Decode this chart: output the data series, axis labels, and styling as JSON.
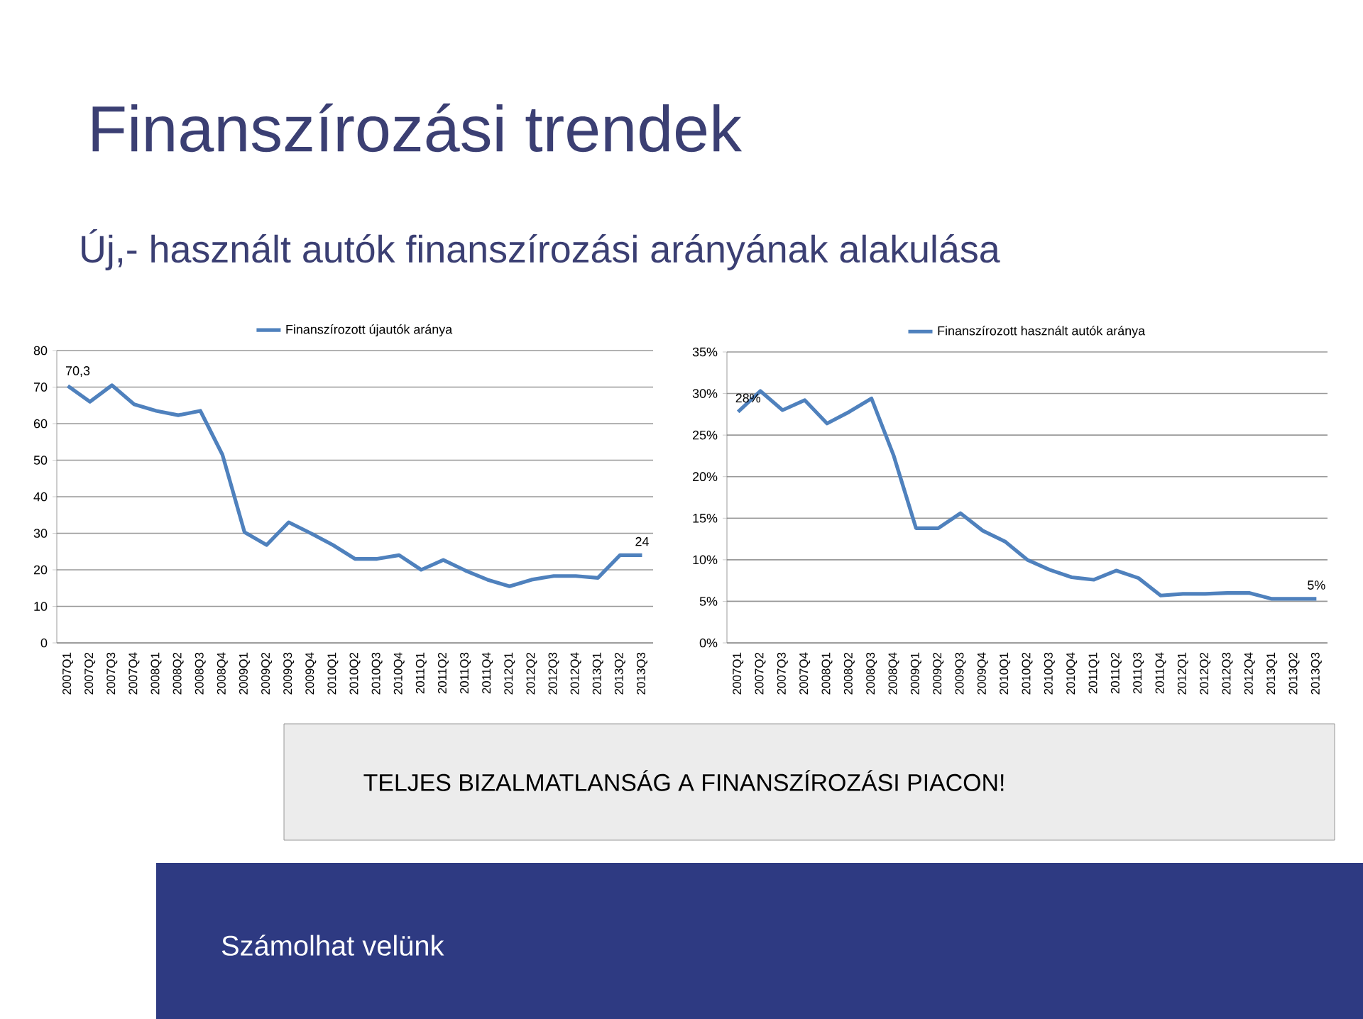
{
  "chart_data": [
    {
      "type": "line",
      "title": "Finanszírozási trendek",
      "subtitle": "Új,- használt autók finanszírozási arányának alakulása",
      "categories": [
        "2007Q1",
        "2007Q2",
        "2007Q3",
        "2007Q4",
        "2008Q1",
        "2008Q2",
        "2008Q3",
        "2008Q4",
        "2009Q1",
        "2009Q2",
        "2009Q3",
        "2009Q4",
        "2010Q1",
        "2010Q2",
        "2010Q3",
        "2010Q4",
        "2011Q1",
        "2011Q2",
        "2011Q3",
        "2011Q4",
        "2012Q1",
        "2012Q2",
        "2012Q3",
        "2012Q4",
        "2013Q1",
        "2013Q2",
        "2013Q3"
      ],
      "series": [
        {
          "name": "Finanszírozott újautók aránya",
          "color": "#4f81bd",
          "values": [
            70.3,
            66,
            70.5,
            65.3,
            63.5,
            62.3,
            63.5,
            51.5,
            30.3,
            26.8,
            33,
            30,
            26.8,
            23,
            23,
            24,
            20,
            22.7,
            19.8,
            17.3,
            15.5,
            17.3,
            18.3,
            18.3,
            17.8,
            24,
            24
          ],
          "value_labels": [
            "70,3",
            null,
            null,
            null,
            null,
            null,
            null,
            null,
            null,
            null,
            null,
            null,
            null,
            null,
            null,
            null,
            null,
            null,
            null,
            null,
            null,
            null,
            null,
            null,
            null,
            null,
            "24"
          ]
        }
      ],
      "ylim": [
        0,
        80
      ],
      "yticks": [
        0,
        10,
        20,
        30,
        40,
        50,
        60,
        70,
        80
      ],
      "grid": "y",
      "legend": "top",
      "marker": "none",
      "line_style": "solid"
    },
    {
      "type": "line",
      "categories": [
        "2007Q1",
        "2007Q2",
        "2007Q3",
        "2007Q4",
        "2008Q1",
        "2008Q2",
        "2008Q3",
        "2008Q4",
        "2009Q1",
        "2009Q2",
        "2009Q3",
        "2009Q4",
        "2010Q1",
        "2010Q2",
        "2010Q3",
        "2010Q4",
        "2011Q1",
        "2011Q2",
        "2011Q3",
        "2011Q4",
        "2012Q1",
        "2012Q2",
        "2012Q3",
        "2012Q4",
        "2013Q1",
        "2013Q2",
        "2013Q3"
      ],
      "series": [
        {
          "name": "Finanszírozott használt autók aránya",
          "color": "#4f81bd",
          "values": [
            27.8,
            30.3,
            28,
            29.2,
            26.4,
            27.8,
            29.4,
            22.5,
            13.8,
            13.8,
            15.6,
            13.5,
            12.2,
            10,
            8.8,
            7.9,
            7.6,
            8.7,
            7.8,
            5.7,
            5.9,
            5.9,
            6,
            6,
            5.3,
            5.3,
            5.3
          ],
          "value_labels": [
            "28%",
            null,
            null,
            null,
            null,
            null,
            null,
            null,
            null,
            null,
            null,
            null,
            null,
            null,
            null,
            null,
            null,
            null,
            null,
            null,
            null,
            null,
            null,
            null,
            null,
            null,
            "5%"
          ]
        }
      ],
      "ylim": [
        0,
        35
      ],
      "yticks": [
        {
          "value": 0,
          "label": "0%"
        },
        {
          "value": 5,
          "label": "5%"
        },
        {
          "value": 10,
          "label": "10%"
        },
        {
          "value": 15,
          "label": "15%"
        },
        {
          "value": 20,
          "label": "20%"
        },
        {
          "value": 25,
          "label": "25%"
        },
        {
          "value": 30,
          "label": "30%"
        },
        {
          "value": 35,
          "label": "35%"
        }
      ],
      "grid": "y",
      "legend": "top",
      "marker": "none",
      "line_style": "solid",
      "annotations": [
        "TELJES BIZALMATLANSÁG A FINANSZÍROZÁSI PIACON!",
        "Számolhat velünk"
      ]
    }
  ]
}
